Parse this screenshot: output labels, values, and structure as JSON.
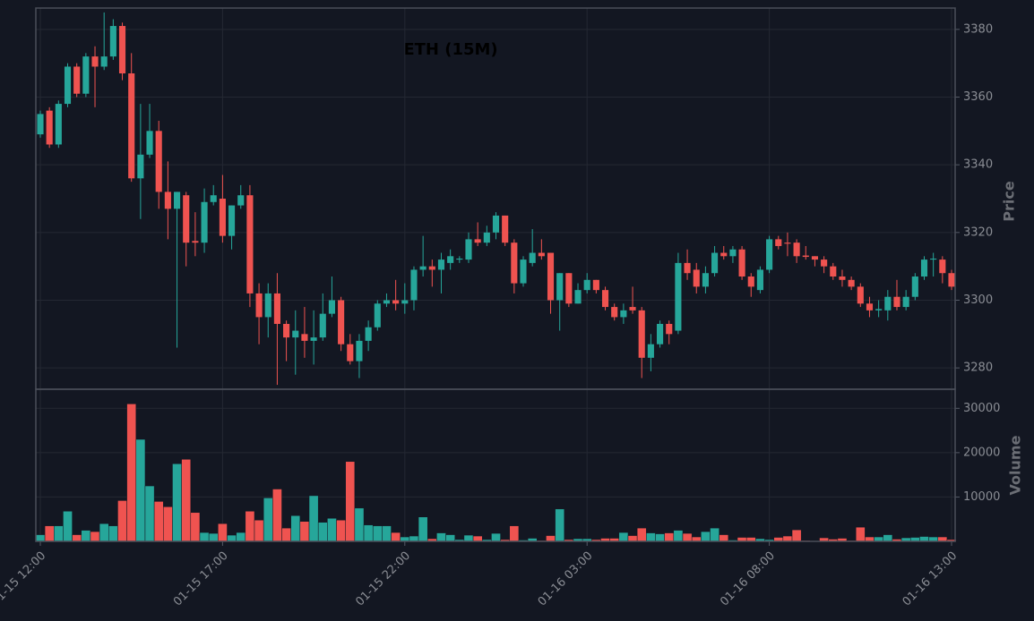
{
  "chart_data": {
    "type": "candlestick",
    "title": "ETH (15M)",
    "ylabel": "Price",
    "volume_ylabel": "Volume",
    "up_color": "#26a69a",
    "down_color": "#ef5350",
    "grid": true,
    "categories": [
      "01-15 12:00",
      null,
      null,
      null,
      null,
      null,
      null,
      null,
      null,
      null,
      null,
      null,
      null,
      null,
      null,
      null,
      null,
      null,
      null,
      null,
      "01-15 17:00",
      null,
      null,
      null,
      null,
      null,
      null,
      null,
      null,
      null,
      null,
      null,
      null,
      null,
      null,
      null,
      null,
      null,
      null,
      null,
      "01-15 22:00",
      null,
      null,
      null,
      null,
      null,
      null,
      null,
      null,
      null,
      null,
      null,
      null,
      null,
      null,
      null,
      null,
      null,
      null,
      null,
      "01-16 03:00",
      null,
      null,
      null,
      null,
      null,
      null,
      null,
      null,
      null,
      null,
      null,
      null,
      null,
      null,
      null,
      null,
      null,
      null,
      null,
      "01-16 08:00",
      null,
      null,
      null,
      null,
      null,
      null,
      null,
      null,
      null,
      null,
      null,
      null,
      null,
      null,
      null,
      null,
      null,
      null,
      null,
      "01-16 13:00"
    ],
    "open": [
      3349,
      3356,
      3346,
      3358,
      3369,
      3361,
      3372,
      3369,
      3372,
      3381,
      3367,
      3336,
      3343,
      3350,
      3332,
      3327,
      3331,
      3317.5,
      3317,
      3329,
      3330,
      3319,
      3328,
      3331,
      3302,
      3295,
      3302,
      3293,
      3289,
      3290,
      3288,
      3289,
      3296,
      3300,
      3287,
      3282,
      3288,
      3292,
      3299,
      3300,
      3299,
      3300,
      3309,
      3310,
      3309,
      3311,
      3312,
      3312,
      3318,
      3317,
      3320,
      3325,
      3317,
      3305,
      3311,
      3314,
      3314,
      3300,
      3308,
      3299,
      3303,
      3306,
      3303,
      3298,
      3295,
      3298,
      3297,
      3283,
      3287,
      3293,
      3291,
      3311,
      3309,
      3304,
      3308,
      3314,
      3313,
      3315,
      3307,
      3303,
      3309,
      3318,
      3317,
      3317,
      3313.2,
      3313,
      3312,
      3310,
      3307,
      3306,
      3304,
      3299,
      3297,
      3297,
      3301,
      3298,
      3301,
      3307,
      3312,
      3312,
      3308
    ],
    "high": [
      3356,
      3357,
      3359,
      3370,
      3370,
      3373,
      3375,
      3385,
      3383,
      3382,
      3373,
      3358,
      3358,
      3353,
      3341,
      3332,
      3332,
      3326,
      3333,
      3334,
      3337,
      3328,
      3334,
      3334,
      3305,
      3305,
      3308,
      3294,
      3297,
      3298,
      3297,
      3302,
      3307,
      3301,
      3290,
      3290,
      3294,
      3300,
      3302,
      3306,
      3305,
      3310,
      3319,
      3312,
      3314,
      3315,
      3313,
      3320,
      3323,
      3322,
      3326,
      3325,
      3318,
      3313,
      3321,
      3318,
      3314,
      3308,
      3308,
      3305,
      3308,
      3306,
      3304,
      3299,
      3299,
      3304,
      3298,
      3290,
      3294,
      3294,
      3314,
      3315,
      3311,
      3310,
      3316,
      3316,
      3316,
      3316,
      3308,
      3310,
      3319,
      3319,
      3320,
      3318,
      3316,
      3313,
      3313,
      3311,
      3309,
      3307,
      3305,
      3301,
      3300,
      3303,
      3306,
      3303,
      3308,
      3313,
      3314,
      3313,
      3309
    ],
    "low": [
      3348,
      3345,
      3345,
      3357,
      3360,
      3360,
      3357,
      3368,
      3371,
      3365,
      3335,
      3324,
      3342,
      3327,
      3318,
      3286,
      3310,
      3313,
      3314,
      3328,
      3317,
      3315,
      3327,
      3298,
      3287,
      3289,
      3275,
      3282,
      3278,
      3283,
      3281,
      3288,
      3295,
      3285,
      3281,
      3277,
      3285,
      3291,
      3298,
      3297,
      3296,
      3297,
      3307,
      3304,
      3302,
      3309,
      3311,
      3311,
      3316,
      3316,
      3318,
      3316,
      3302,
      3304,
      3310,
      3312,
      3296,
      3291,
      3298,
      3299,
      3302,
      3302,
      3297,
      3294,
      3293,
      3296,
      3277,
      3279,
      3286,
      3287,
      3290,
      3306,
      3302,
      3302,
      3307,
      3312,
      3311,
      3306,
      3301,
      3302,
      3308,
      3315,
      3313,
      3311,
      3312,
      3310,
      3308,
      3306,
      3304,
      3303,
      3298,
      3295,
      3295,
      3294,
      3297,
      3297,
      3300,
      3306,
      3307,
      3305,
      3303
    ],
    "close": [
      3355,
      3346,
      3358,
      3369,
      3361,
      3372,
      3369,
      3372,
      3381,
      3367,
      3336,
      3343,
      3350,
      3332,
      3327,
      3332,
      3317,
      3317,
      3329,
      3331,
      3319,
      3328,
      3331,
      3302,
      3295,
      3302,
      3293,
      3289,
      3291,
      3288,
      3289,
      3296,
      3300,
      3287,
      3282,
      3288,
      3292,
      3299,
      3300,
      3299,
      3300,
      3309,
      3310,
      3309,
      3312,
      3313,
      3312.3,
      3318,
      3317,
      3320,
      3325,
      3317,
      3305,
      3312,
      3314,
      3313,
      3300,
      3308,
      3299,
      3303,
      3306,
      3303,
      3298,
      3295,
      3297,
      3297,
      3283,
      3287,
      3293,
      3290,
      3311,
      3308,
      3304,
      3308,
      3314,
      3313,
      3315,
      3307,
      3304,
      3309,
      3318,
      3316,
      3316.7,
      3313,
      3312.8,
      3312,
      3310,
      3307,
      3306,
      3304,
      3299,
      3297,
      3297.4,
      3301,
      3298,
      3301,
      3307,
      3312,
      3312.3,
      3308,
      3304
    ],
    "volume": [
      1500,
      3500,
      3500,
      6800,
      1500,
      2500,
      2200,
      4000,
      3500,
      9200,
      31000,
      23000,
      12500,
      9000,
      7800,
      17500,
      18500,
      6500,
      2000,
      1800,
      4000,
      1400,
      2000,
      6800,
      4800,
      9800,
      11800,
      3000,
      5800,
      4500,
      10300,
      4300,
      5200,
      4800,
      18000,
      7500,
      3700,
      3500,
      3500,
      2000,
      1000,
      1200,
      5500,
      600,
      1900,
      1500,
      400,
      1400,
      1200,
      400,
      1800,
      400,
      3500,
      300,
      700,
      200,
      1300,
      7300,
      400,
      600,
      600,
      400,
      700,
      700,
      2000,
      1300,
      3000,
      1900,
      1700,
      1900,
      2500,
      1800,
      1000,
      2200,
      3000,
      1500,
      300,
      900,
      900,
      600,
      400,
      900,
      1200,
      2600,
      200,
      100,
      800,
      500,
      700,
      200,
      3200,
      1000,
      1000,
      1500,
      500,
      800,
      900,
      1100,
      1000,
      1000,
      400
    ],
    "ylim": [
      3273.7,
      3386.3
    ],
    "yticks": [
      3280,
      3300,
      3320,
      3340,
      3360,
      3380
    ],
    "volume_ylim": [
      0,
      34300
    ],
    "volume_yticks": [
      10000,
      20000,
      30000
    ]
  }
}
